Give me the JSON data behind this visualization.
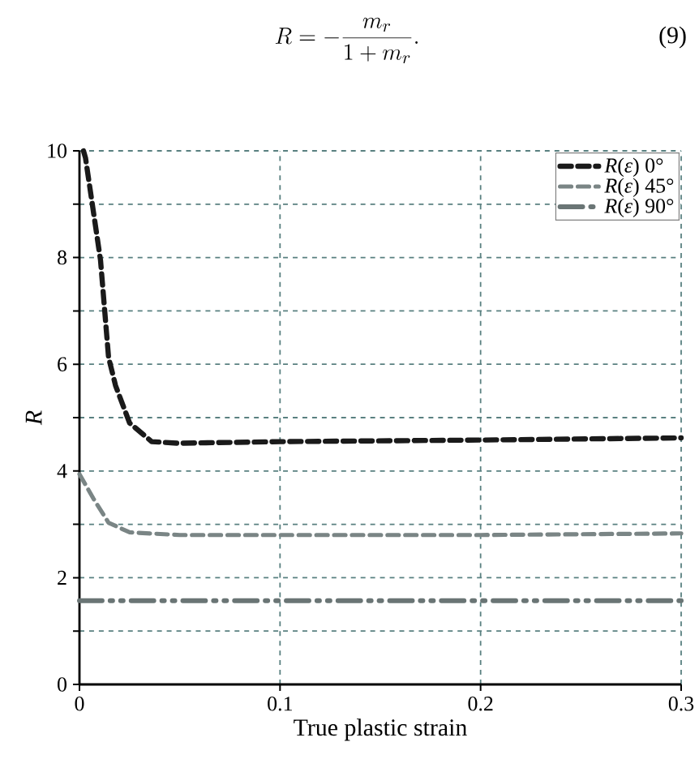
{
  "chart_data": {
    "type": "line",
    "xlabel": "True plastic strain",
    "ylabel": "R",
    "annotations": [
      "R = -\\frac{m_r}{1+m_r}.",
      "(9)"
    ],
    "xlim": [
      0,
      0.3
    ],
    "ylim": [
      0,
      10
    ],
    "xticks": [
      0,
      0.1,
      0.2,
      0.3
    ],
    "yticks": [
      0,
      {
        "value": 1,
        "label": null
      },
      2,
      {
        "value": 3,
        "label": null
      },
      4,
      {
        "value": 5,
        "label": null
      },
      6,
      {
        "value": 7,
        "label": null
      },
      8,
      {
        "value": 9,
        "label": null
      },
      10
    ],
    "grid": true,
    "legend": "top right",
    "series": [
      {
        "name": "*R*(*ε*) 0°",
        "color": "#1a1a1a",
        "line_style": "dashed",
        "x": [
          0.002,
          0.003,
          0.0105,
          0.0145,
          0.018,
          0.025,
          0.036,
          0.049,
          0.1,
          0.2,
          0.3
        ],
        "values": [
          10,
          9.87,
          7.95,
          6.13,
          5.6,
          4.9,
          4.55,
          4.52,
          4.55,
          4.58,
          4.62
        ]
      },
      {
        "name": "*R*(*ε*) 45°",
        "color": "#7a8585",
        "line_style": "dashed",
        "x": [
          0,
          0.007,
          0.0145,
          0.025,
          0.05,
          0.1,
          0.2,
          0.3
        ],
        "values": [
          3.94,
          3.48,
          3.03,
          2.85,
          2.8,
          2.8,
          2.8,
          2.83
        ]
      },
      {
        "name": "*R*(*ε*) 90°",
        "color": "#6a7575",
        "line_style": "dashdotdot",
        "x": [
          0,
          0.1,
          0.2,
          0.3
        ],
        "values": [
          1.57,
          1.57,
          1.57,
          1.57
        ]
      }
    ]
  }
}
